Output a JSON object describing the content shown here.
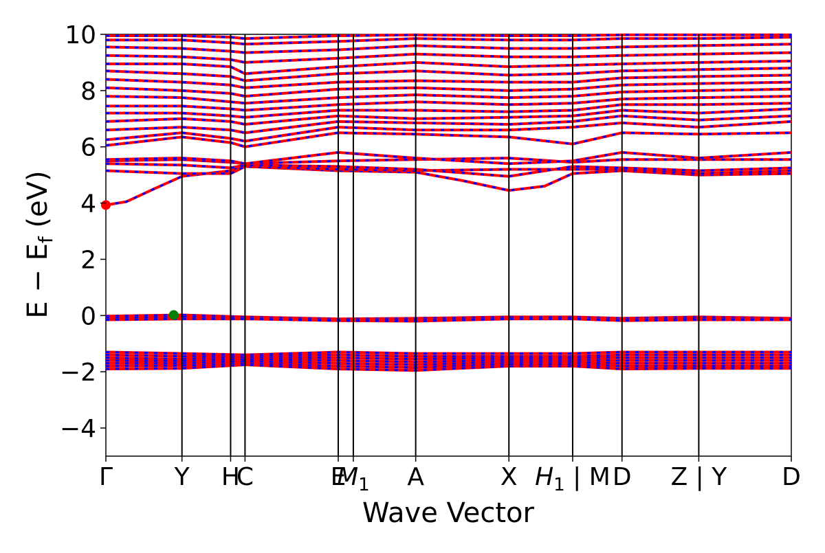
{
  "chart_data": {
    "type": "line",
    "xlabel": "Wave Vector",
    "ylabel": "E − E_f (eV)",
    "ylabel_parts": {
      "main": "E  −  E",
      "sub": "f",
      "unit": " (eV)"
    },
    "ylim": [
      -5,
      10
    ],
    "yticks": [
      {
        "value": -4,
        "label": "−4"
      },
      {
        "value": -2,
        "label": "−2"
      },
      {
        "value": 0,
        "label": "0"
      },
      {
        "value": 2,
        "label": "2"
      },
      {
        "value": 4,
        "label": "4"
      },
      {
        "value": 6,
        "label": "6"
      },
      {
        "value": 8,
        "label": "8"
      },
      {
        "value": 10,
        "label": "10"
      }
    ],
    "xlim": [
      0,
      1
    ],
    "kpoints": [
      {
        "x": 0.0,
        "label": "Γ"
      },
      {
        "x": 0.111,
        "label": "Y"
      },
      {
        "x": 0.182,
        "label": "H"
      },
      {
        "x": 0.203,
        "label": "C"
      },
      {
        "x": 0.339,
        "label": "E"
      },
      {
        "x": 0.361,
        "label": "M",
        "sub": "1"
      },
      {
        "x": 0.452,
        "label": "A"
      },
      {
        "x": 0.588,
        "label": "X"
      },
      {
        "x": 0.681,
        "label": "H",
        "sub": "1",
        "suffix": " | M"
      },
      {
        "x": 0.753,
        "label": "D"
      },
      {
        "x": 0.865,
        "label": "Z | Y"
      },
      {
        "x": 1.0,
        "label": "D"
      }
    ],
    "colors": {
      "band_solid": "#ff0000",
      "band_dashed": "#0000ff",
      "cbm_marker": "#ff0000",
      "vbm_marker": "#008000"
    },
    "markers": [
      {
        "name": "cbm",
        "x": 0.0,
        "y": 3.93,
        "color": "#ff0000"
      },
      {
        "name": "vbm",
        "x": 0.099,
        "y": 0.02,
        "color": "#008000"
      }
    ],
    "bands": [
      [
        [
          0,
          3.93
        ],
        [
          0.03,
          4.05
        ],
        [
          0.07,
          4.5
        ],
        [
          0.111,
          4.95
        ],
        [
          0.182,
          5.15
        ],
        [
          0.203,
          5.3
        ],
        [
          0.339,
          5.15
        ],
        [
          0.452,
          5.1
        ],
        [
          0.52,
          4.8
        ],
        [
          0.588,
          4.45
        ],
        [
          0.64,
          4.6
        ],
        [
          0.681,
          5.05
        ],
        [
          0.753,
          5.15
        ],
        [
          0.865,
          5.0
        ],
        [
          1.0,
          5.05
        ]
      ],
      [
        [
          0,
          5.15
        ],
        [
          0.111,
          5.05
        ],
        [
          0.182,
          5.05
        ],
        [
          0.203,
          5.3
        ],
        [
          0.339,
          5.2
        ],
        [
          0.452,
          5.15
        ],
        [
          0.588,
          5.2
        ],
        [
          0.681,
          5.2
        ],
        [
          0.753,
          5.2
        ],
        [
          0.865,
          5.05
        ],
        [
          1.0,
          5.15
        ]
      ],
      [
        [
          0,
          5.4
        ],
        [
          0.111,
          5.35
        ],
        [
          0.182,
          5.25
        ],
        [
          0.203,
          5.35
        ],
        [
          0.339,
          5.3
        ],
        [
          0.452,
          5.2
        ],
        [
          0.588,
          4.95
        ],
        [
          0.681,
          5.3
        ],
        [
          0.753,
          5.25
        ],
        [
          0.865,
          5.15
        ],
        [
          1.0,
          5.25
        ]
      ],
      [
        [
          0,
          5.5
        ],
        [
          0.111,
          5.55
        ],
        [
          0.182,
          5.45
        ],
        [
          0.203,
          5.4
        ],
        [
          0.339,
          5.5
        ],
        [
          0.452,
          5.55
        ],
        [
          0.588,
          5.6
        ],
        [
          0.681,
          5.45
        ],
        [
          0.753,
          5.55
        ],
        [
          0.865,
          5.55
        ],
        [
          1.0,
          5.55
        ]
      ],
      [
        [
          0,
          5.55
        ],
        [
          0.111,
          5.6
        ],
        [
          0.182,
          5.5
        ],
        [
          0.203,
          5.4
        ],
        [
          0.339,
          5.8
        ],
        [
          0.452,
          5.6
        ],
        [
          0.588,
          5.4
        ],
        [
          0.681,
          5.5
        ],
        [
          0.753,
          5.8
        ],
        [
          0.865,
          5.6
        ],
        [
          1.0,
          5.8
        ]
      ],
      [
        [
          0,
          6.05
        ],
        [
          0.111,
          6.35
        ],
        [
          0.182,
          6.15
        ],
        [
          0.203,
          6.0
        ],
        [
          0.339,
          6.5
        ],
        [
          0.452,
          6.45
        ],
        [
          0.588,
          6.35
        ],
        [
          0.681,
          6.1
        ],
        [
          0.753,
          6.5
        ],
        [
          0.865,
          6.45
        ],
        [
          1.0,
          6.5
        ]
      ],
      [
        [
          0,
          6.25
        ],
        [
          0.111,
          6.5
        ],
        [
          0.182,
          6.3
        ],
        [
          0.203,
          6.2
        ],
        [
          0.339,
          6.7
        ],
        [
          0.452,
          6.6
        ],
        [
          0.588,
          6.6
        ],
        [
          0.681,
          6.7
        ],
        [
          0.753,
          6.85
        ],
        [
          0.865,
          6.7
        ],
        [
          1.0,
          6.9
        ]
      ],
      [
        [
          0,
          6.6
        ],
        [
          0.111,
          6.7
        ],
        [
          0.182,
          6.6
        ],
        [
          0.203,
          6.5
        ],
        [
          0.339,
          6.9
        ],
        [
          0.452,
          6.85
        ],
        [
          0.588,
          6.8
        ],
        [
          0.681,
          6.9
        ],
        [
          0.753,
          7.1
        ],
        [
          0.865,
          6.95
        ],
        [
          1.0,
          7.1
        ]
      ],
      [
        [
          0,
          6.9
        ],
        [
          0.111,
          7.0
        ],
        [
          0.182,
          6.9
        ],
        [
          0.203,
          6.8
        ],
        [
          0.339,
          7.1
        ],
        [
          0.452,
          7.0
        ],
        [
          0.588,
          7.05
        ],
        [
          0.681,
          7.1
        ],
        [
          0.753,
          7.3
        ],
        [
          0.865,
          7.2
        ],
        [
          1.0,
          7.35
        ]
      ],
      [
        [
          0,
          7.2
        ],
        [
          0.111,
          7.2
        ],
        [
          0.182,
          7.1
        ],
        [
          0.203,
          7.05
        ],
        [
          0.339,
          7.3
        ],
        [
          0.452,
          7.3
        ],
        [
          0.588,
          7.25
        ],
        [
          0.681,
          7.3
        ],
        [
          0.753,
          7.5
        ],
        [
          0.865,
          7.5
        ],
        [
          1.0,
          7.55
        ]
      ],
      [
        [
          0,
          7.45
        ],
        [
          0.111,
          7.45
        ],
        [
          0.182,
          7.35
        ],
        [
          0.203,
          7.3
        ],
        [
          0.339,
          7.5
        ],
        [
          0.452,
          7.6
        ],
        [
          0.588,
          7.5
        ],
        [
          0.681,
          7.55
        ],
        [
          0.753,
          7.7
        ],
        [
          0.865,
          7.75
        ],
        [
          1.0,
          7.8
        ]
      ],
      [
        [
          0,
          7.8
        ],
        [
          0.111,
          7.75
        ],
        [
          0.182,
          7.6
        ],
        [
          0.203,
          7.55
        ],
        [
          0.339,
          7.75
        ],
        [
          0.452,
          7.85
        ],
        [
          0.588,
          7.75
        ],
        [
          0.681,
          7.8
        ],
        [
          0.753,
          7.95
        ],
        [
          0.865,
          8.0
        ],
        [
          1.0,
          8.05
        ]
      ],
      [
        [
          0,
          8.1
        ],
        [
          0.111,
          8.0
        ],
        [
          0.182,
          7.9
        ],
        [
          0.203,
          7.8
        ],
        [
          0.339,
          8.05
        ],
        [
          0.452,
          8.1
        ],
        [
          0.588,
          8.0
        ],
        [
          0.681,
          8.05
        ],
        [
          0.753,
          8.2
        ],
        [
          0.865,
          8.25
        ],
        [
          1.0,
          8.3
        ]
      ],
      [
        [
          0,
          8.4
        ],
        [
          0.111,
          8.3
        ],
        [
          0.182,
          8.2
        ],
        [
          0.203,
          8.1
        ],
        [
          0.339,
          8.3
        ],
        [
          0.452,
          8.35
        ],
        [
          0.588,
          8.3
        ],
        [
          0.681,
          8.3
        ],
        [
          0.753,
          8.45
        ],
        [
          0.865,
          8.5
        ],
        [
          1.0,
          8.55
        ]
      ],
      [
        [
          0,
          8.7
        ],
        [
          0.111,
          8.6
        ],
        [
          0.182,
          8.5
        ],
        [
          0.203,
          8.35
        ],
        [
          0.339,
          8.6
        ],
        [
          0.452,
          8.7
        ],
        [
          0.588,
          8.55
        ],
        [
          0.681,
          8.6
        ],
        [
          0.753,
          8.7
        ],
        [
          0.865,
          8.75
        ],
        [
          1.0,
          8.8
        ]
      ],
      [
        [
          0,
          8.95
        ],
        [
          0.111,
          8.95
        ],
        [
          0.182,
          8.85
        ],
        [
          0.203,
          8.6
        ],
        [
          0.339,
          8.85
        ],
        [
          0.452,
          9.0
        ],
        [
          0.588,
          8.85
        ],
        [
          0.681,
          8.9
        ],
        [
          0.753,
          8.95
        ],
        [
          0.865,
          9.0
        ],
        [
          1.0,
          9.05
        ]
      ],
      [
        [
          0,
          9.25
        ],
        [
          0.111,
          9.2
        ],
        [
          0.182,
          9.1
        ],
        [
          0.203,
          9.0
        ],
        [
          0.339,
          9.15
        ],
        [
          0.452,
          9.3
        ],
        [
          0.588,
          9.2
        ],
        [
          0.681,
          9.2
        ],
        [
          0.753,
          9.25
        ],
        [
          0.865,
          9.3
        ],
        [
          1.0,
          9.35
        ]
      ],
      [
        [
          0,
          9.55
        ],
        [
          0.111,
          9.5
        ],
        [
          0.182,
          9.4
        ],
        [
          0.203,
          9.35
        ],
        [
          0.339,
          9.45
        ],
        [
          0.452,
          9.6
        ],
        [
          0.588,
          9.5
        ],
        [
          0.681,
          9.5
        ],
        [
          0.753,
          9.55
        ],
        [
          0.865,
          9.6
        ],
        [
          1.0,
          9.65
        ]
      ],
      [
        [
          0,
          9.8
        ],
        [
          0.111,
          9.8
        ],
        [
          0.182,
          9.7
        ],
        [
          0.203,
          9.65
        ],
        [
          0.339,
          9.75
        ],
        [
          0.452,
          9.85
        ],
        [
          0.588,
          9.8
        ],
        [
          0.681,
          9.8
        ],
        [
          0.753,
          9.85
        ],
        [
          0.865,
          9.85
        ],
        [
          1.0,
          9.9
        ]
      ],
      [
        [
          0,
          9.95
        ],
        [
          0.111,
          9.95
        ],
        [
          0.182,
          9.9
        ],
        [
          0.203,
          9.85
        ],
        [
          0.339,
          9.95
        ],
        [
          0.452,
          9.98
        ],
        [
          0.588,
          9.95
        ],
        [
          0.681,
          9.95
        ],
        [
          0.753,
          9.98
        ],
        [
          0.865,
          9.98
        ],
        [
          1.0,
          9.98
        ]
      ],
      [
        [
          0,
          -0.02
        ],
        [
          0.111,
          0.02
        ],
        [
          0.203,
          -0.05
        ],
        [
          0.339,
          -0.12
        ],
        [
          0.452,
          -0.1
        ],
        [
          0.588,
          -0.05
        ],
        [
          0.681,
          -0.05
        ],
        [
          0.753,
          -0.1
        ],
        [
          0.865,
          -0.05
        ],
        [
          1.0,
          -0.1
        ]
      ],
      [
        [
          0,
          -0.08
        ],
        [
          0.111,
          -0.05
        ],
        [
          0.203,
          -0.08
        ],
        [
          0.339,
          -0.15
        ],
        [
          0.452,
          -0.15
        ],
        [
          0.588,
          -0.08
        ],
        [
          0.681,
          -0.08
        ],
        [
          0.753,
          -0.15
        ],
        [
          0.865,
          -0.1
        ],
        [
          1.0,
          -0.12
        ]
      ],
      [
        [
          0,
          -0.15
        ],
        [
          0.111,
          -0.12
        ],
        [
          0.203,
          -0.12
        ],
        [
          0.339,
          -0.18
        ],
        [
          0.452,
          -0.2
        ],
        [
          0.588,
          -0.12
        ],
        [
          0.681,
          -0.12
        ],
        [
          0.753,
          -0.18
        ],
        [
          0.865,
          -0.15
        ],
        [
          1.0,
          -0.15
        ]
      ],
      [
        [
          0,
          -1.3
        ],
        [
          0.111,
          -1.35
        ],
        [
          0.203,
          -1.4
        ],
        [
          0.339,
          -1.3
        ],
        [
          0.452,
          -1.35
        ],
        [
          0.588,
          -1.35
        ],
        [
          0.681,
          -1.35
        ],
        [
          0.753,
          -1.3
        ],
        [
          0.865,
          -1.3
        ],
        [
          1.0,
          -1.3
        ]
      ],
      [
        [
          0,
          -1.4
        ],
        [
          0.111,
          -1.45
        ],
        [
          0.203,
          -1.45
        ],
        [
          0.339,
          -1.4
        ],
        [
          0.452,
          -1.45
        ],
        [
          0.588,
          -1.45
        ],
        [
          0.681,
          -1.45
        ],
        [
          0.753,
          -1.4
        ],
        [
          0.865,
          -1.4
        ],
        [
          1.0,
          -1.4
        ]
      ],
      [
        [
          0,
          -1.5
        ],
        [
          0.111,
          -1.55
        ],
        [
          0.203,
          -1.5
        ],
        [
          0.339,
          -1.5
        ],
        [
          0.452,
          -1.55
        ],
        [
          0.588,
          -1.5
        ],
        [
          0.681,
          -1.5
        ],
        [
          0.753,
          -1.5
        ],
        [
          0.865,
          -1.5
        ],
        [
          1.0,
          -1.5
        ]
      ],
      [
        [
          0,
          -1.6
        ],
        [
          0.111,
          -1.62
        ],
        [
          0.203,
          -1.55
        ],
        [
          0.339,
          -1.6
        ],
        [
          0.452,
          -1.65
        ],
        [
          0.588,
          -1.58
        ],
        [
          0.681,
          -1.58
        ],
        [
          0.753,
          -1.6
        ],
        [
          0.865,
          -1.6
        ],
        [
          1.0,
          -1.6
        ]
      ],
      [
        [
          0,
          -1.7
        ],
        [
          0.111,
          -1.7
        ],
        [
          0.203,
          -1.62
        ],
        [
          0.339,
          -1.7
        ],
        [
          0.452,
          -1.75
        ],
        [
          0.588,
          -1.65
        ],
        [
          0.681,
          -1.65
        ],
        [
          0.753,
          -1.7
        ],
        [
          0.865,
          -1.7
        ],
        [
          1.0,
          -1.7
        ]
      ],
      [
        [
          0,
          -1.8
        ],
        [
          0.111,
          -1.78
        ],
        [
          0.203,
          -1.7
        ],
        [
          0.339,
          -1.8
        ],
        [
          0.452,
          -1.85
        ],
        [
          0.588,
          -1.72
        ],
        [
          0.681,
          -1.72
        ],
        [
          0.753,
          -1.8
        ],
        [
          0.865,
          -1.8
        ],
        [
          1.0,
          -1.8
        ]
      ],
      [
        [
          0,
          -1.9
        ],
        [
          0.111,
          -1.88
        ],
        [
          0.203,
          -1.75
        ],
        [
          0.339,
          -1.9
        ],
        [
          0.452,
          -1.95
        ],
        [
          0.588,
          -1.8
        ],
        [
          0.681,
          -1.8
        ],
        [
          0.753,
          -1.9
        ],
        [
          0.865,
          -1.88
        ],
        [
          1.0,
          -1.88
        ]
      ]
    ]
  }
}
